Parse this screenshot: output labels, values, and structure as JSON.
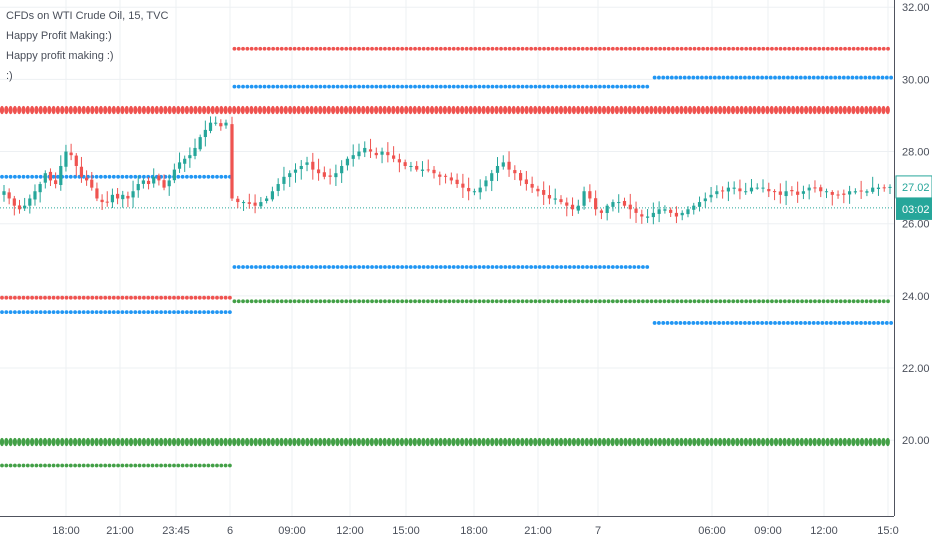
{
  "legend": {
    "symbol": "CFDs on WTI Crude Oil, 15, TVC",
    "indicator_1": "Happy Profit Making:)",
    "indicator_2": "Happy profit making :)",
    "indicator_3": ":)"
  },
  "badges": {
    "price": "27.02",
    "countdown": "03:02"
  },
  "colors": {
    "up": "#26a69a",
    "down": "#ef5350",
    "dot_red": "#ef5350",
    "dot_blue": "#2196f3",
    "dot_green": "#43a047",
    "price_line": "#26a69a",
    "grid": "#edf0f3",
    "axis": "#50535e"
  },
  "chart_data": {
    "type": "candlestick",
    "ylim": [
      17.9,
      32.2
    ],
    "y_ticks": [
      "32.00",
      "30.00",
      "28.00",
      "26.00",
      "24.00",
      "22.00",
      "20.00"
    ],
    "y_tick_values": [
      32,
      30,
      28,
      26,
      24,
      22,
      20
    ],
    "x_ticks": [
      "18:00",
      "21:00",
      "23:45",
      "6",
      "09:00",
      "12:00",
      "15:00",
      "18:00",
      "21:00",
      "7",
      "06:00",
      "09:00",
      "12:00",
      "15:0"
    ],
    "last_price": 27.02,
    "close_path": [
      26.9,
      26.7,
      26.5,
      26.4,
      26.5,
      26.7,
      26.9,
      27.1,
      27.4,
      27.2,
      27.1,
      27.6,
      28.0,
      27.9,
      27.6,
      27.3,
      27.2,
      27.0,
      26.7,
      26.6,
      26.6,
      26.8,
      26.7,
      26.8,
      26.7,
      26.9,
      27.1,
      27.2,
      27.1,
      27.3,
      27.2,
      27.0,
      27.2,
      27.5,
      27.7,
      27.8,
      27.9,
      28.1,
      28.4,
      28.6,
      28.8,
      28.8,
      28.7,
      28.8,
      26.7,
      26.6,
      26.6,
      26.55,
      26.5,
      26.6,
      26.7,
      26.9,
      27.1,
      27.3,
      27.4,
      27.5,
      27.6,
      27.7,
      27.5,
      27.4,
      27.3,
      27.3,
      27.4,
      27.6,
      27.8,
      27.9,
      28.0,
      28.1,
      28.0,
      27.9,
      28.0,
      27.9,
      27.8,
      27.7,
      27.6,
      27.6,
      27.5,
      27.5,
      27.5,
      27.4,
      27.3,
      27.3,
      27.2,
      27.1,
      27.0,
      26.9,
      26.9,
      27.0,
      27.2,
      27.4,
      27.6,
      27.7,
      27.5,
      27.4,
      27.2,
      27.1,
      27.0,
      26.9,
      26.8,
      26.7,
      26.7,
      26.6,
      26.5,
      26.4,
      26.5,
      26.9,
      26.7,
      26.4,
      26.3,
      26.5,
      26.6,
      26.6,
      26.5,
      26.4,
      26.3,
      26.2,
      26.2,
      26.3,
      26.4,
      26.4,
      26.3,
      26.2,
      26.3,
      26.4,
      26.5,
      26.6,
      26.7,
      26.8,
      26.9,
      26.9,
      27.0,
      27.0,
      26.9,
      26.9,
      27.0,
      27.0,
      27.0,
      26.9,
      26.9,
      26.8,
      26.9,
      26.9,
      26.8,
      26.9,
      27.0,
      27.0,
      26.9,
      26.9,
      26.8,
      26.8,
      26.8,
      26.9,
      26.9,
      26.9,
      26.9,
      27.0,
      27.0,
      27.0,
      27.02
    ],
    "levels": [
      {
        "color": "red",
        "y": 30.85,
        "x0": 0.26,
        "x1": 1.0
      },
      {
        "color": "blue",
        "y": 29.8,
        "x0": 0.26,
        "x1": 0.73
      },
      {
        "color": "blue",
        "y": 30.05,
        "x0": 0.73,
        "x1": 1.0
      },
      {
        "color": "red",
        "y": 29.15,
        "x0": 0.0,
        "x1": 1.0,
        "thick": true
      },
      {
        "color": "blue",
        "y": 27.3,
        "x0": 0.0,
        "x1": 0.26
      },
      {
        "color": "blue",
        "y": 24.8,
        "x0": 0.26,
        "x1": 0.73
      },
      {
        "color": "red",
        "y": 23.95,
        "x0": 0.0,
        "x1": 0.26
      },
      {
        "color": "green",
        "y": 23.85,
        "x0": 0.26,
        "x1": 1.0
      },
      {
        "color": "blue",
        "y": 23.55,
        "x0": 0.0,
        "x1": 0.26
      },
      {
        "color": "blue",
        "y": 23.25,
        "x0": 0.73,
        "x1": 1.0
      },
      {
        "color": "green",
        "y": 19.95,
        "x0": 0.0,
        "x1": 1.0,
        "thick": true
      },
      {
        "color": "green",
        "y": 19.3,
        "x0": 0.0,
        "x1": 0.26
      }
    ]
  }
}
